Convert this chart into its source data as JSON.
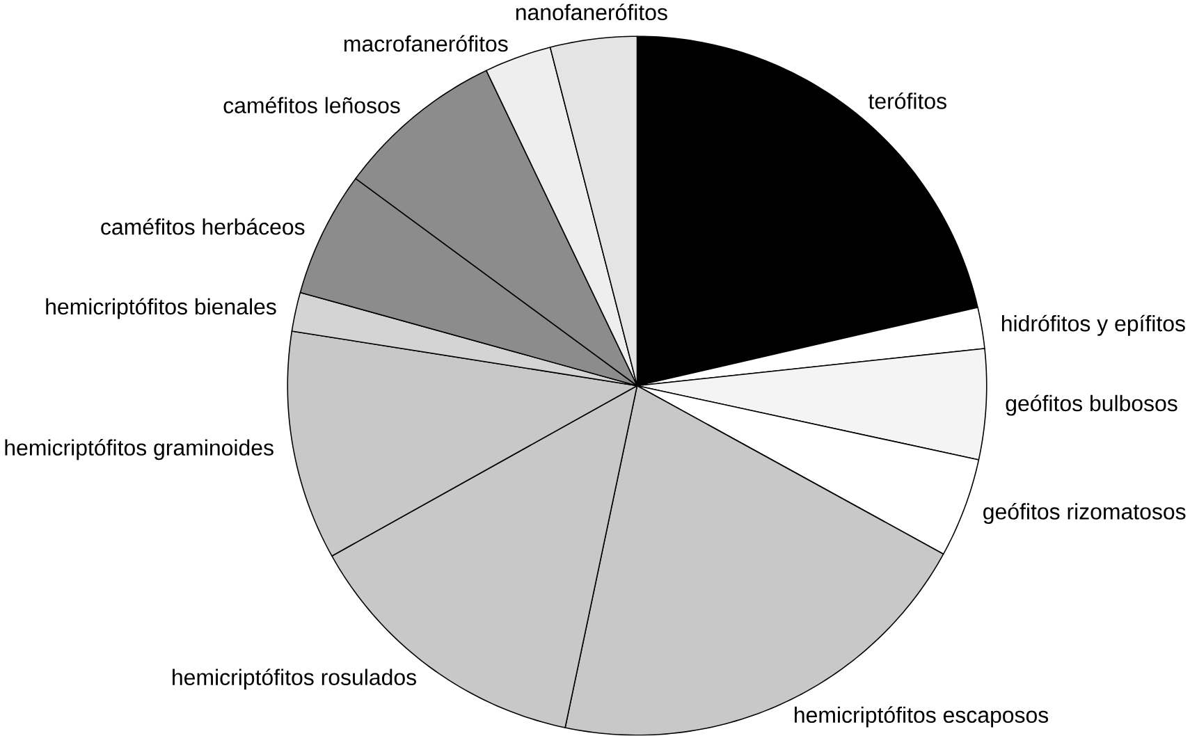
{
  "chart_data": {
    "type": "pie",
    "categories": [
      "terófitos",
      "hidrófitos y epífitos",
      "geófitos bulbosos",
      "geófitos rizomatosos",
      "hemicriptófitos escaposos",
      "hemicriptófitos rosulados",
      "hemicriptófitos graminoides",
      "hemicriptófitos bienales",
      "caméfitos herbáceos",
      "caméfitos leñosos",
      "macrofanerófitos",
      "nanofanerófitos"
    ],
    "values": [
      21.4,
      1.9,
      5.1,
      4.6,
      20.3,
      13.6,
      10.6,
      1.8,
      5.8,
      7.8,
      3.1,
      4.0
    ],
    "colors": [
      "#000000",
      "#ffffff",
      "#f4f4f4",
      "#ffffff",
      "#c8c8c8",
      "#c8c8c8",
      "#c8c8c8",
      "#d4d4d4",
      "#8c8c8c",
      "#8c8c8c",
      "#eeeeee",
      "#e4e4e4"
    ]
  }
}
